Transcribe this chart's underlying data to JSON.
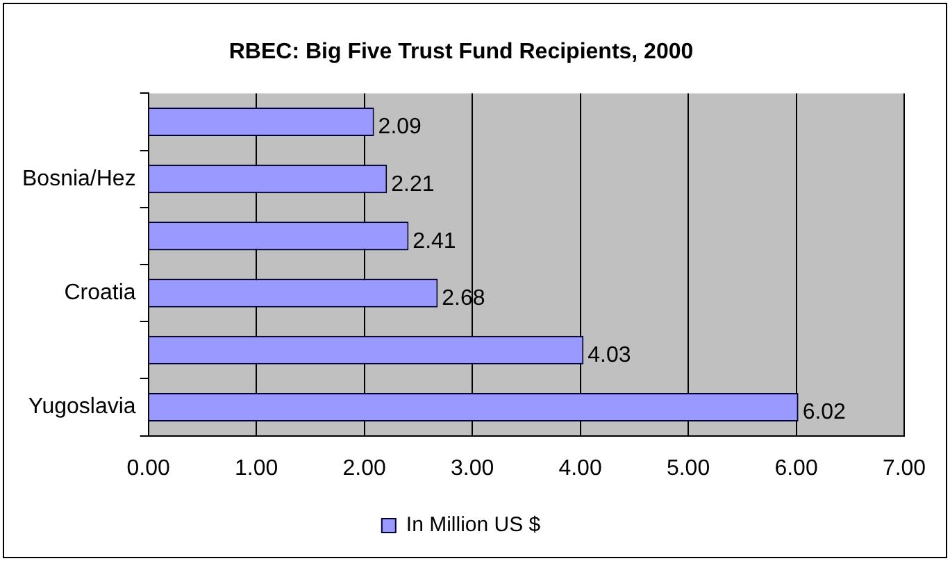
{
  "chart_data": {
    "type": "bar",
    "orientation": "horizontal",
    "title": "RBEC: Big Five Trust Fund Recipients, 2000",
    "categories": [
      null,
      "Bosnia/Hez",
      null,
      "Croatia",
      null,
      "Yugoslavia"
    ],
    "series": [
      {
        "name": "In Million US $",
        "color": "#9999ff",
        "values": [
          2.09,
          2.21,
          2.41,
          2.68,
          4.03,
          6.02
        ]
      }
    ],
    "xlim": [
      0,
      7
    ],
    "xticks": [
      {
        "value": 0,
        "label": "0.00"
      },
      {
        "value": 1,
        "label": "1.00"
      },
      {
        "value": 2,
        "label": "2.00"
      },
      {
        "value": 3,
        "label": "3.00"
      },
      {
        "value": 4,
        "label": "4.00"
      },
      {
        "value": 5,
        "label": "5.00"
      },
      {
        "value": 6,
        "label": "6.00"
      },
      {
        "value": 7,
        "label": "7.00"
      }
    ],
    "grid": "x",
    "legend": "bottom",
    "data_labels": true
  }
}
